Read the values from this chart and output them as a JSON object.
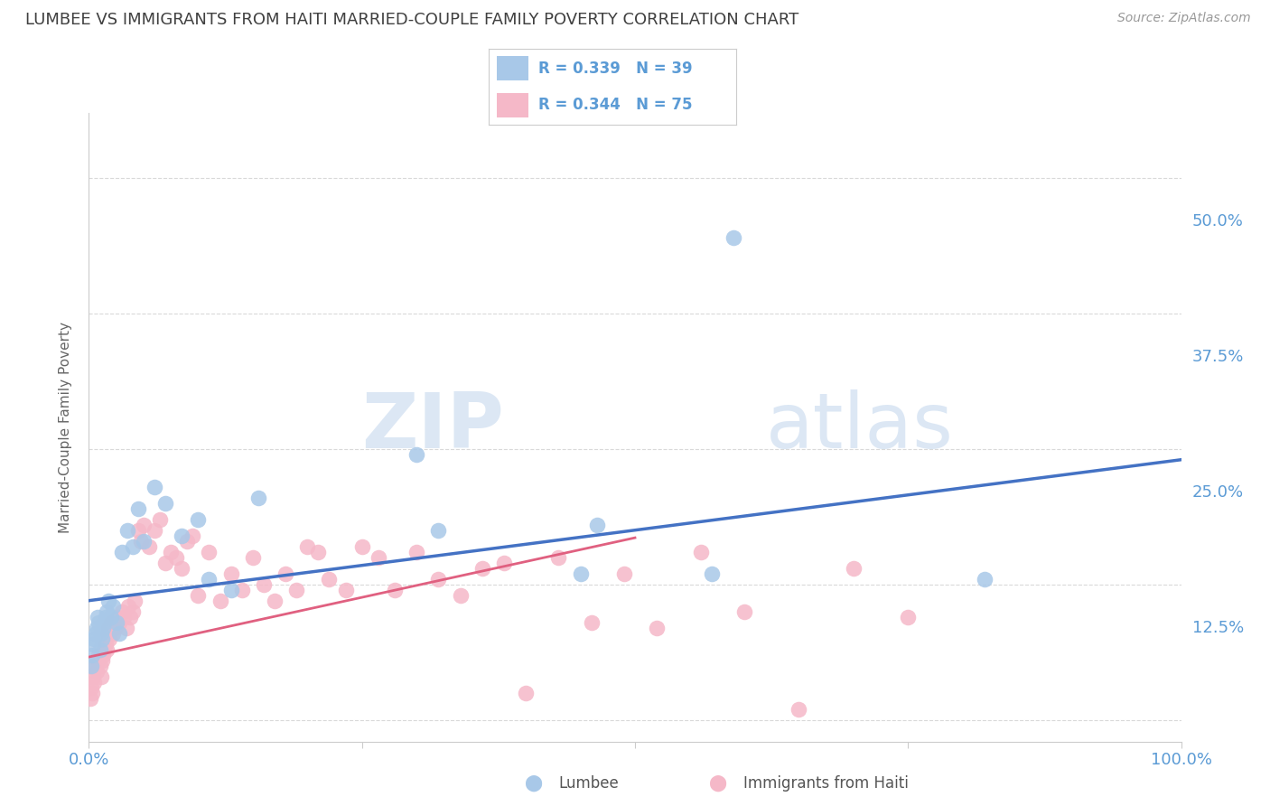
{
  "title": "LUMBEE VS IMMIGRANTS FROM HAITI MARRIED-COUPLE FAMILY POVERTY CORRELATION CHART",
  "source": "Source: ZipAtlas.com",
  "ylabel": "Married-Couple Family Poverty",
  "xlim": [
    0.0,
    1.0
  ],
  "ylim": [
    -0.02,
    0.56
  ],
  "yticks": [
    0.0,
    0.125,
    0.25,
    0.375,
    0.5
  ],
  "ytick_labels": [
    "",
    "12.5%",
    "25.0%",
    "37.5%",
    "50.0%"
  ],
  "xticks": [
    0.0,
    0.25,
    0.5,
    0.75,
    1.0
  ],
  "xtick_labels": [
    "0.0%",
    "",
    "",
    "",
    "100.0%"
  ],
  "lumbee_R": 0.339,
  "lumbee_N": 39,
  "haiti_R": 0.344,
  "haiti_N": 75,
  "lumbee_color": "#a8c8e8",
  "haiti_color": "#f5b8c8",
  "lumbee_line_color": "#4472c4",
  "haiti_line_color": "#e06080",
  "background_color": "#ffffff",
  "grid_color": "#d0d0d0",
  "title_color": "#404040",
  "tick_color": "#5b9bd5",
  "watermark_zip": "ZIP",
  "watermark_atlas": "atlas",
  "lumbee_points_x": [
    0.002,
    0.003,
    0.004,
    0.005,
    0.006,
    0.007,
    0.008,
    0.009,
    0.01,
    0.011,
    0.012,
    0.013,
    0.014,
    0.015,
    0.016,
    0.018,
    0.02,
    0.022,
    0.025,
    0.028,
    0.03,
    0.035,
    0.04,
    0.045,
    0.05,
    0.06,
    0.07,
    0.085,
    0.1,
    0.11,
    0.13,
    0.155,
    0.3,
    0.32,
    0.45,
    0.465,
    0.57,
    0.59,
    0.82
  ],
  "lumbee_points_y": [
    0.05,
    0.06,
    0.07,
    0.075,
    0.08,
    0.085,
    0.095,
    0.09,
    0.065,
    0.08,
    0.075,
    0.085,
    0.09,
    0.095,
    0.1,
    0.11,
    0.095,
    0.105,
    0.09,
    0.08,
    0.155,
    0.175,
    0.16,
    0.195,
    0.165,
    0.215,
    0.2,
    0.17,
    0.185,
    0.13,
    0.12,
    0.205,
    0.245,
    0.175,
    0.135,
    0.18,
    0.135,
    0.445,
    0.13
  ],
  "haiti_points_x": [
    0.001,
    0.002,
    0.003,
    0.004,
    0.005,
    0.006,
    0.007,
    0.008,
    0.009,
    0.01,
    0.011,
    0.012,
    0.013,
    0.014,
    0.015,
    0.016,
    0.017,
    0.018,
    0.019,
    0.02,
    0.022,
    0.024,
    0.026,
    0.028,
    0.03,
    0.032,
    0.034,
    0.036,
    0.038,
    0.04,
    0.042,
    0.045,
    0.048,
    0.05,
    0.055,
    0.06,
    0.065,
    0.07,
    0.075,
    0.08,
    0.085,
    0.09,
    0.095,
    0.1,
    0.11,
    0.12,
    0.13,
    0.14,
    0.15,
    0.16,
    0.17,
    0.18,
    0.19,
    0.2,
    0.21,
    0.22,
    0.235,
    0.25,
    0.265,
    0.28,
    0.3,
    0.32,
    0.34,
    0.36,
    0.38,
    0.4,
    0.43,
    0.46,
    0.49,
    0.52,
    0.56,
    0.6,
    0.65,
    0.7,
    0.75
  ],
  "haiti_points_y": [
    0.02,
    0.03,
    0.025,
    0.04,
    0.035,
    0.05,
    0.045,
    0.055,
    0.06,
    0.05,
    0.04,
    0.055,
    0.06,
    0.065,
    0.07,
    0.065,
    0.08,
    0.085,
    0.075,
    0.09,
    0.08,
    0.085,
    0.095,
    0.09,
    0.1,
    0.095,
    0.085,
    0.105,
    0.095,
    0.1,
    0.11,
    0.175,
    0.165,
    0.18,
    0.16,
    0.175,
    0.185,
    0.145,
    0.155,
    0.15,
    0.14,
    0.165,
    0.17,
    0.115,
    0.155,
    0.11,
    0.135,
    0.12,
    0.15,
    0.125,
    0.11,
    0.135,
    0.12,
    0.16,
    0.155,
    0.13,
    0.12,
    0.16,
    0.15,
    0.12,
    0.155,
    0.13,
    0.115,
    0.14,
    0.145,
    0.025,
    0.15,
    0.09,
    0.135,
    0.085,
    0.155,
    0.1,
    0.01,
    0.14,
    0.095
  ]
}
